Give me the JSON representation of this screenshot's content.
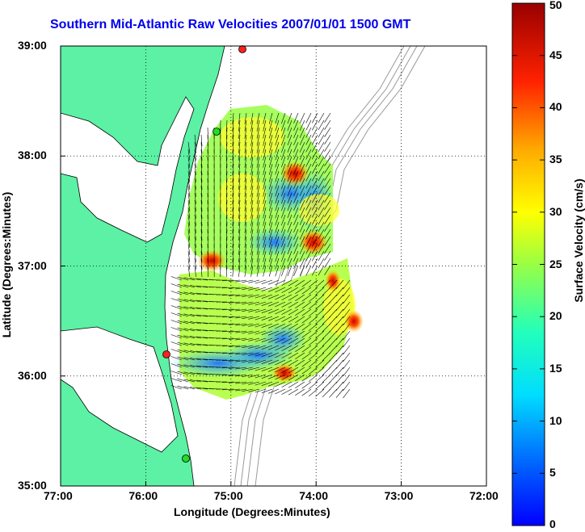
{
  "title": "Southern Mid-Atlantic Raw Velocities 2007/01/01 1500 GMT",
  "map": {
    "x_axis_label": "Longitude (Degrees:Minutes)",
    "y_axis_label": "Latitude (Degrees:Minutes)",
    "x_ticks": [
      "77:00",
      "76:00",
      "75:00",
      "74:00",
      "73:00",
      "72:00"
    ],
    "y_ticks": [
      "39:00",
      "38:00",
      "37:00",
      "36:00",
      "35:00"
    ],
    "lon_range": [
      -77,
      -72
    ],
    "lat_range": [
      35,
      39
    ],
    "grid": true
  },
  "colorbar": {
    "label": "Surface Velocity (cm/s)",
    "ticks": [
      "50",
      "45",
      "40",
      "35",
      "30",
      "25",
      "20",
      "15",
      "10",
      "5",
      "0"
    ],
    "range": [
      0,
      50
    ],
    "colormap": "jet"
  },
  "colors": {
    "land": "#5cf1a4",
    "title": "#0000ee",
    "bathymetry": "#999999",
    "station_red": "#ff2020",
    "station_green": "#22dd22"
  }
}
